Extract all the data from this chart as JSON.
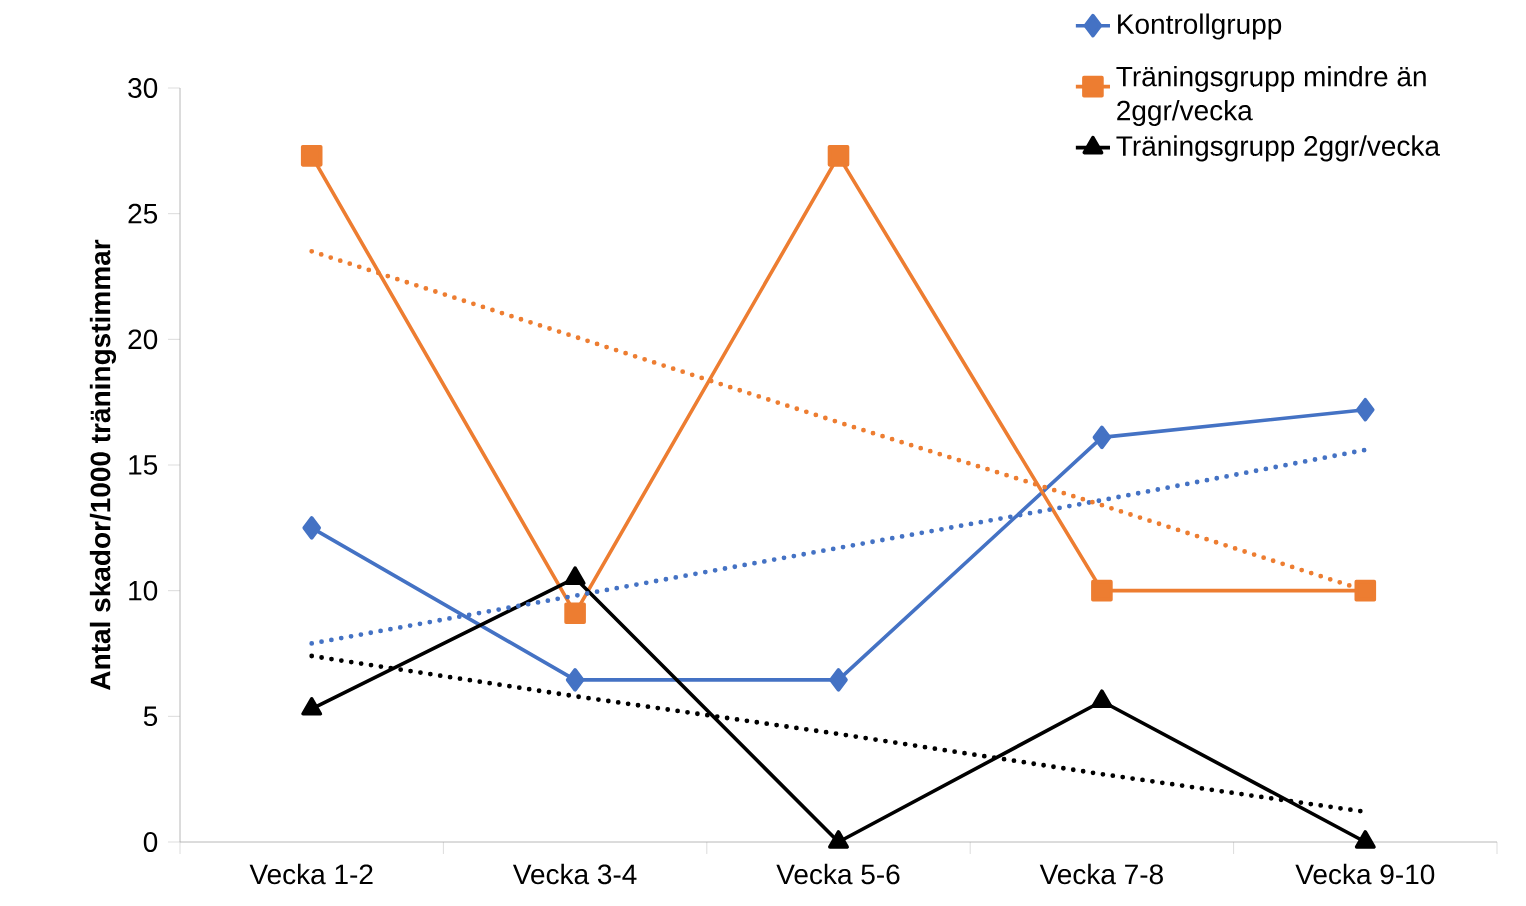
{
  "chart_data": {
    "type": "line",
    "ylabel": "Antal skador/1000 träningstimmar",
    "categories": [
      "Vecka 1-2",
      "Vecka 3-4",
      "Vecka 5-6",
      "Vecka 7-8",
      "Vecka 9-10"
    ],
    "series": [
      {
        "name": "Kontrollgrupp",
        "color": "#4472c4",
        "values": [
          12.5,
          6.45,
          6.45,
          16.1,
          17.2
        ],
        "marker": "diamond",
        "line_style": "solid"
      },
      {
        "name": "Träningsgrupp mindre än 2ggr/vecka",
        "color": "#ed7d31",
        "values": [
          27.3,
          9.1,
          27.3,
          10,
          10
        ],
        "marker": "square",
        "line_style": "solid"
      },
      {
        "name": "Träningsgrupp 2ggr/vecka",
        "color": "#000000",
        "values": [
          5.3,
          10.5,
          0,
          5.6,
          0
        ],
        "marker": "triangle",
        "line_style": "solid"
      },
      {
        "color": "#4472c4",
        "values": [
          7.9,
          9.8,
          11.7,
          13.6,
          15.6
        ],
        "marker": "none",
        "line_style": "dotted"
      },
      {
        "color": "#ed7d31",
        "values": [
          23.5,
          20.1,
          16.7,
          13.4,
          10.0
        ],
        "marker": "none",
        "line_style": "dotted"
      },
      {
        "color": "#000000",
        "values": [
          7.4,
          5.8,
          4.3,
          2.7,
          1.2
        ],
        "marker": "none",
        "line_style": "dotted"
      }
    ],
    "ylim": [
      0,
      30
    ],
    "yticks": [
      0,
      5,
      10,
      15,
      20,
      25,
      30
    ],
    "grid": false,
    "legend": "top right"
  }
}
